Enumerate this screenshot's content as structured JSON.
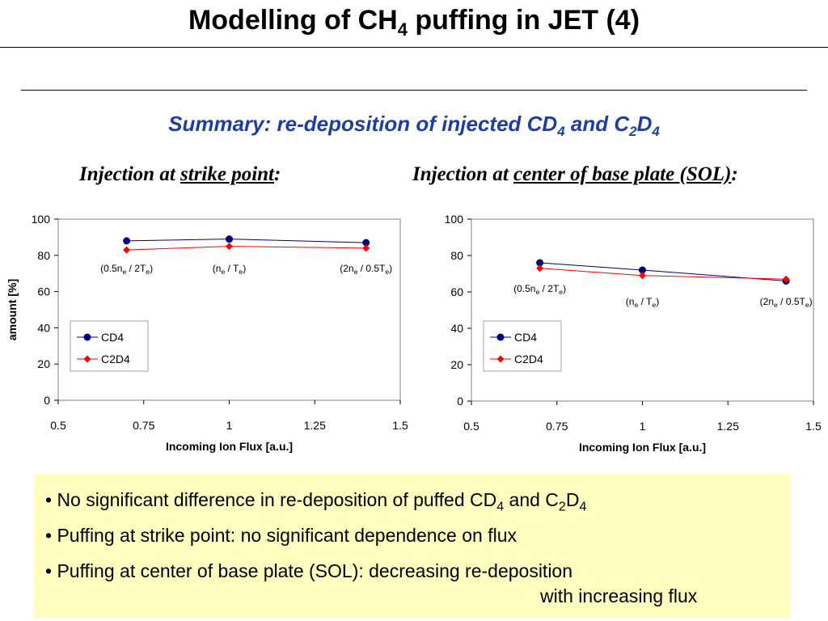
{
  "slide": {
    "title": "Modelling of CH",
    "title_sub": "4",
    "title_tail": " puffing in JET (4)",
    "subtitle": [
      "Summary: re-deposition of injected CD",
      "4",
      " and C",
      "2",
      "D",
      "4"
    ],
    "left_heading": {
      "pre": "Injection at ",
      "underlined": "strike point",
      "post": ":"
    },
    "right_heading": {
      "pre": "Injection at ",
      "underlined": "center of base plate (SOL)",
      "post": ":"
    }
  },
  "summary": {
    "line1": [
      "• No significant difference in re-deposition of puffed CD",
      "4",
      " and C",
      "2",
      "D",
      "4"
    ],
    "line2": "• Puffing at strike point: no significant dependence on flux",
    "line3": "• Puffing at center of base plate (SOL):   decreasing re-deposition",
    "line3_cont": "with increasing flux",
    "background": "#ffffc0"
  },
  "chart_data": [
    {
      "type": "line",
      "x": [
        0.7,
        1.0,
        1.4
      ],
      "series": [
        {
          "name": "CD4",
          "values": [
            88,
            89,
            87
          ],
          "color": "#00007f",
          "marker": "circle"
        },
        {
          "name": "C2D4",
          "values": [
            83,
            85,
            84
          ],
          "color": "#ff0000",
          "marker": "diamond"
        }
      ],
      "xlabel": "Incoming Ion Flux [a.u.]",
      "ylabel": "amount [%]",
      "xlim": [
        0.5,
        1.5
      ],
      "ylim": [
        0,
        100
      ],
      "xticks": [
        "0.5",
        "0.75",
        "1",
        "1.25",
        "1.5"
      ],
      "yticks": [
        "0",
        "20",
        "40",
        "60",
        "80",
        "100"
      ],
      "legend": "bottom-left",
      "annotations": [
        {
          "text": [
            "(0.5n",
            "e",
            " / 2T",
            "e",
            ")"
          ],
          "x": 0.7,
          "y": 71
        },
        {
          "text": [
            "(n",
            "e",
            " / T",
            "e",
            ")"
          ],
          "x": 1.0,
          "y": 71
        },
        {
          "text": [
            "(2n",
            "e",
            " / 0.5T",
            "e",
            ")"
          ],
          "x": 1.4,
          "y": 71
        }
      ]
    },
    {
      "type": "line",
      "x": [
        0.7,
        1.0,
        1.42
      ],
      "series": [
        {
          "name": "CD4",
          "values": [
            76,
            72,
            66
          ],
          "color": "#00007f",
          "marker": "circle"
        },
        {
          "name": "C2D4",
          "values": [
            73,
            69,
            67
          ],
          "color": "#ff0000",
          "marker": "diamond"
        }
      ],
      "xlabel": "Incoming Ion Flux [a.u.]",
      "ylabel": "",
      "xlim": [
        0.5,
        1.5
      ],
      "ylim": [
        0,
        100
      ],
      "xticks": [
        "0.5",
        "0.75",
        "1",
        "1.25",
        "1.5"
      ],
      "yticks": [
        "0",
        "20",
        "40",
        "60",
        "80",
        "100"
      ],
      "legend": "bottom-left",
      "annotations": [
        {
          "text": [
            "(0.5n",
            "e",
            " / 2T",
            "e",
            ")"
          ],
          "x": 0.7,
          "y": 60
        },
        {
          "text": [
            "(n",
            "e",
            " / T",
            "e",
            ")"
          ],
          "x": 1.0,
          "y": 53
        },
        {
          "text": [
            "(2n",
            "e",
            " / 0.5T",
            "e",
            ")"
          ],
          "x": 1.42,
          "y": 53
        }
      ]
    }
  ]
}
